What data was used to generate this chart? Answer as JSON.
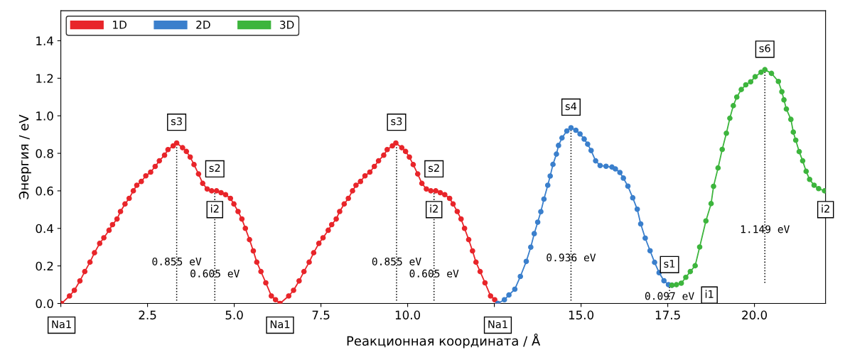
{
  "chart_data": {
    "type": "line",
    "xlabel": "Реакционная координата / Å",
    "ylabel": "Энергия / eV",
    "xlim": [
      0,
      22.05
    ],
    "ylim": [
      0,
      1.56
    ],
    "xticks": [
      {
        "value": 0,
        "label": null
      },
      2.5,
      {
        "value": 5,
        "label": "5.0"
      },
      7.5,
      {
        "value": 10,
        "label": "10.0"
      },
      {
        "value": 12.5,
        "label": null
      },
      {
        "value": 15,
        "label": "15.0"
      },
      17.5,
      {
        "value": 20,
        "label": "20.0"
      }
    ],
    "yticks": [
      {
        "value": 0,
        "label": "0.0"
      },
      0.2,
      0.4,
      0.6,
      0.8,
      {
        "value": 1,
        "label": "1.0"
      },
      1.2,
      1.4
    ],
    "grid": false,
    "legend": "top left",
    "marker": "circle",
    "line_style": "solid",
    "series": [
      {
        "name": "1D",
        "color": "#e8252a",
        "x": [
          0.02,
          0.25,
          0.39,
          0.55,
          0.69,
          0.84,
          0.97,
          1.12,
          1.24,
          1.39,
          1.49,
          1.62,
          1.72,
          1.85,
          1.97,
          2.09,
          2.19,
          2.32,
          2.45,
          2.59,
          2.72,
          2.84,
          2.99,
          3.09,
          3.24,
          3.34,
          3.51,
          3.62,
          3.73,
          3.84,
          3.97,
          4.09,
          4.22,
          4.35,
          4.49,
          4.62,
          4.75,
          4.89,
          4.99,
          5.11,
          5.22,
          5.32,
          5.44,
          5.55,
          5.65,
          5.77,
          5.91,
          6.07,
          6.19,
          6.32,
          6.57,
          6.71,
          6.87,
          7.01,
          7.16,
          7.29,
          7.44,
          7.56,
          7.71,
          7.81,
          7.94,
          8.04,
          8.17,
          8.29,
          8.41,
          8.51,
          8.64,
          8.77,
          8.91,
          9.04,
          9.16,
          9.31,
          9.41,
          9.56,
          9.66,
          9.83,
          9.94,
          10.05,
          10.16,
          10.29,
          10.41,
          10.54,
          10.67,
          10.81,
          10.94,
          11.07,
          11.21,
          11.31,
          11.43,
          11.54,
          11.64,
          11.76,
          11.87,
          11.97,
          12.09,
          12.23,
          12.39,
          12.51,
          12.6
        ],
        "values": [
          0.0,
          0.04,
          0.07,
          0.12,
          0.17,
          0.22,
          0.27,
          0.32,
          0.35,
          0.39,
          0.42,
          0.45,
          0.49,
          0.53,
          0.56,
          0.6,
          0.63,
          0.65,
          0.68,
          0.7,
          0.73,
          0.76,
          0.79,
          0.82,
          0.84,
          0.855,
          0.83,
          0.81,
          0.78,
          0.74,
          0.69,
          0.64,
          0.61,
          0.6,
          0.6,
          0.59,
          0.58,
          0.56,
          0.53,
          0.49,
          0.45,
          0.4,
          0.34,
          0.28,
          0.22,
          0.17,
          0.11,
          0.04,
          0.02,
          0.0,
          0.04,
          0.07,
          0.12,
          0.17,
          0.22,
          0.27,
          0.32,
          0.35,
          0.39,
          0.42,
          0.45,
          0.49,
          0.53,
          0.56,
          0.6,
          0.63,
          0.65,
          0.68,
          0.7,
          0.73,
          0.76,
          0.79,
          0.82,
          0.84,
          0.855,
          0.83,
          0.81,
          0.78,
          0.74,
          0.69,
          0.64,
          0.61,
          0.6,
          0.6,
          0.59,
          0.58,
          0.56,
          0.53,
          0.49,
          0.45,
          0.4,
          0.34,
          0.28,
          0.22,
          0.17,
          0.11,
          0.04,
          0.02,
          0.0
        ]
      },
      {
        "name": "2D",
        "color": "#3a7fcc",
        "x": [
          12.6,
          12.79,
          12.92,
          13.09,
          13.25,
          13.42,
          13.55,
          13.65,
          13.75,
          13.84,
          13.93,
          14.04,
          14.11,
          14.19,
          14.29,
          14.35,
          14.45,
          14.59,
          14.71,
          14.85,
          14.97,
          15.09,
          15.19,
          15.29,
          15.42,
          15.55,
          15.72,
          15.89,
          15.99,
          16.12,
          16.22,
          16.35,
          16.49,
          16.62,
          16.72,
          16.85,
          16.99,
          17.12,
          17.25,
          17.39,
          17.52,
          17.62
        ],
        "values": [
          0.0,
          0.02,
          0.045,
          0.076,
          0.144,
          0.224,
          0.3,
          0.372,
          0.433,
          0.489,
          0.556,
          0.63,
          0.679,
          0.741,
          0.796,
          0.842,
          0.882,
          0.919,
          0.936,
          0.923,
          0.903,
          0.876,
          0.849,
          0.815,
          0.76,
          0.735,
          0.731,
          0.727,
          0.717,
          0.698,
          0.668,
          0.625,
          0.563,
          0.502,
          0.424,
          0.348,
          0.281,
          0.219,
          0.164,
          0.121,
          0.1,
          0.097
        ]
      },
      {
        "name": "3D",
        "color": "#3db53d",
        "x": [
          17.62,
          17.75,
          17.89,
          18.02,
          18.15,
          18.29,
          18.42,
          18.6,
          18.75,
          18.82,
          18.95,
          19.07,
          19.19,
          19.29,
          19.39,
          19.49,
          19.62,
          19.75,
          19.89,
          20.02,
          20.19,
          20.3,
          20.49,
          20.69,
          20.79,
          20.85,
          20.92,
          21.05,
          21.12,
          21.19,
          21.29,
          21.39,
          21.49,
          21.59,
          21.72,
          21.85,
          22.02
        ],
        "values": [
          0.097,
          0.1,
          0.108,
          0.139,
          0.17,
          0.201,
          0.301,
          0.44,
          0.532,
          0.624,
          0.722,
          0.821,
          0.907,
          0.987,
          1.054,
          1.1,
          1.14,
          1.165,
          1.181,
          1.208,
          1.232,
          1.246,
          1.226,
          1.183,
          1.128,
          1.085,
          1.036,
          0.981,
          0.913,
          0.87,
          0.809,
          0.76,
          0.704,
          0.661,
          0.63,
          0.612,
          0.6
        ]
      },
      {
        "color": "#000000",
        "marker": "none",
        "line_style": "dotted",
        "x": [
          3.34,
          3.34
        ],
        "values": [
          0.015,
          0.845
        ]
      },
      {
        "color": "#000000",
        "marker": "none",
        "line_style": "dotted",
        "x": [
          4.44,
          4.44
        ],
        "values": [
          0.015,
          0.595
        ]
      },
      {
        "color": "#000000",
        "marker": "none",
        "line_style": "dotted",
        "x": [
          9.68,
          9.68
        ],
        "values": [
          0.015,
          0.845
        ]
      },
      {
        "color": "#000000",
        "marker": "none",
        "line_style": "dotted",
        "x": [
          10.76,
          10.76
        ],
        "values": [
          0.015,
          0.595
        ]
      },
      {
        "color": "#000000",
        "marker": "none",
        "line_style": "dotted",
        "x": [
          14.71,
          14.71
        ],
        "values": [
          0.015,
          0.925
        ]
      },
      {
        "color": "#000000",
        "marker": "none",
        "line_style": "dotted",
        "x": [
          17.55,
          17.55
        ],
        "values": [
          0.02,
          0.09
        ]
      },
      {
        "color": "#000000",
        "marker": "none",
        "line_style": "dotted",
        "x": [
          20.3,
          20.3
        ],
        "values": [
          0.11,
          1.24
        ]
      }
    ],
    "annotations": [
      {
        "text": "Na1",
        "x": 0.02,
        "y": 0.0
      },
      {
        "text": "s3",
        "x": 3.34,
        "y": 0.966
      },
      {
        "text": "s2",
        "x": 4.44,
        "y": 0.717
      },
      {
        "text": "i2",
        "x": 4.44,
        "y": 0.5
      },
      {
        "text": "Na1",
        "x": 6.32,
        "y": 0.0
      },
      {
        "text": "s3",
        "x": 9.68,
        "y": 0.966
      },
      {
        "text": "s2",
        "x": 10.76,
        "y": 0.717
      },
      {
        "text": "i2",
        "x": 10.76,
        "y": 0.5
      },
      {
        "text": "Na1",
        "x": 12.6,
        "y": 0.0
      },
      {
        "text": "s4",
        "x": 14.71,
        "y": 1.046
      },
      {
        "text": "s1",
        "x": 17.55,
        "y": 0.207
      },
      {
        "text": "i1",
        "x": 18.7,
        "y": 0.045
      },
      {
        "text": "s6",
        "x": 20.3,
        "y": 1.355
      },
      {
        "text": "i2",
        "x": 22.05,
        "y": 0.5
      },
      {
        "text": "0.855 eV",
        "x": 3.34,
        "y": 0.219
      },
      {
        "text": "0.605 eV",
        "x": 4.44,
        "y": 0.155
      },
      {
        "text": "0.855 eV",
        "x": 9.68,
        "y": 0.219
      },
      {
        "text": "0.605 eV",
        "x": 10.76,
        "y": 0.155
      },
      {
        "text": "0.936 eV",
        "x": 14.71,
        "y": 0.24
      },
      {
        "text": "0.097 eV",
        "x": 17.55,
        "y": 0.035
      },
      {
        "text": "1.149 eV",
        "x": 20.3,
        "y": 0.391
      }
    ]
  }
}
